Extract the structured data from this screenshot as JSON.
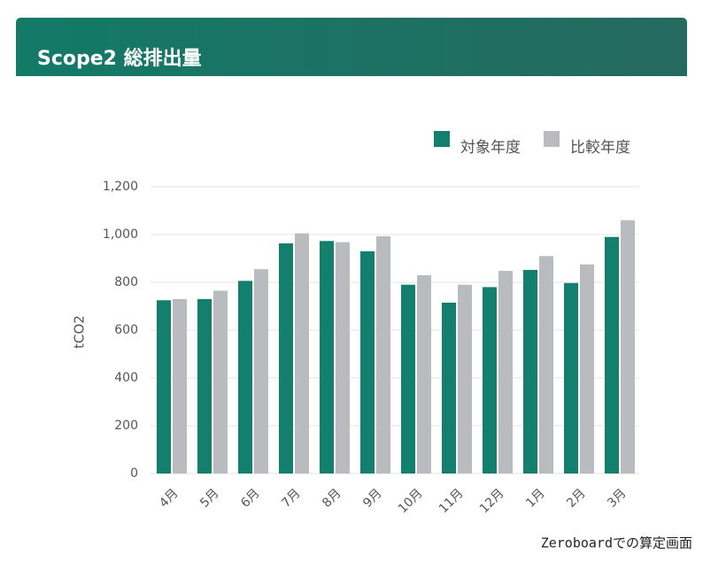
{
  "chart_data": {
    "type": "bar",
    "title": "Scope2 総排出量",
    "y_label": "tCO2",
    "categories": [
      "4月",
      "5月",
      "6月",
      "7月",
      "8月",
      "9月",
      "10月",
      "11月",
      "12月",
      "1月",
      "2月",
      "3月"
    ],
    "series": [
      {
        "name": "対象年度",
        "color": "#13806e",
        "values": [
          725,
          730,
          806,
          963,
          973,
          930,
          790,
          715,
          780,
          852,
          797,
          990
        ]
      },
      {
        "name": "比較年度",
        "color": "#b9bbbe",
        "values": [
          730,
          765,
          855,
          1005,
          968,
          993,
          830,
          790,
          848,
          910,
          875,
          1060
        ]
      }
    ],
    "ylim": [
      0,
      1200
    ],
    "yticks": [
      0,
      200,
      400,
      600,
      800,
      {
        "value": 1000,
        "label": "1,000"
      },
      {
        "value": 1200,
        "label": "1,200"
      }
    ],
    "grid": true
  },
  "caption": "Zeroboardでの算定画面"
}
